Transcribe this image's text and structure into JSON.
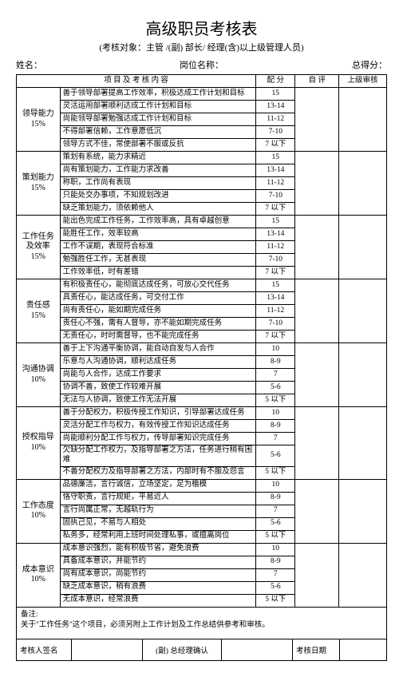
{
  "title": "高级职员考核表",
  "subtitle": "(考核对象：主管 /(副) 部长/ 经理(含)以上级管理人员)",
  "header": {
    "name_label": "姓名：",
    "post_label": "岗位名称：",
    "total_label": "总得分："
  },
  "columns": {
    "item": "项 目 及 考 核 内 容",
    "score": "配 分",
    "self": "自 评",
    "sup": "上级审核"
  },
  "categories": [
    {
      "name": "领导能力",
      "weight": "15%",
      "rows": [
        {
          "desc": "善于领导部署提高工作效率，积极达成工作计划和目标",
          "score": "15"
        },
        {
          "desc": "灵活运用部署顺利达成工作计划和目标",
          "score": "13-14"
        },
        {
          "desc": "尚能领导部署勉强达成工作计划和目标",
          "score": "11-12"
        },
        {
          "desc": "不得部署信赖，工作意愿低沉",
          "score": "7-10"
        },
        {
          "desc": "领导方式不佳，常使部署不服或反抗",
          "score": "7 以下"
        }
      ]
    },
    {
      "name": "策划能力",
      "weight": "15%",
      "rows": [
        {
          "desc": "策划有系统，能力求精近",
          "score": "15"
        },
        {
          "desc": "尚有策划能力，工作能力求改善",
          "score": "13-14"
        },
        {
          "desc": "称职，工作尚有表现",
          "score": "11-12"
        },
        {
          "desc": "只能处交办事项，不知规划改进",
          "score": "7-10"
        },
        {
          "desc": "缺乏策划能力，须依赖他人",
          "score": "7 以下"
        }
      ]
    },
    {
      "name": "工作任务及效率",
      "weight": "15%",
      "rows": [
        {
          "desc": "能出色完成工作任务，工作效率高，具有卓越创意",
          "score": "15"
        },
        {
          "desc": "能胜任工作，效率较高",
          "score": "13-14"
        },
        {
          "desc": "工作不误期，表现符合标准",
          "score": "11-12"
        },
        {
          "desc": "勉强胜任工作，无甚表现",
          "score": "7-10"
        },
        {
          "desc": "工作效率低，时有差错",
          "score": "7 以下"
        }
      ]
    },
    {
      "name": "责任感",
      "weight": "15%",
      "rows": [
        {
          "desc": "有积极责任心，能彻底达成任务，可放心交代任务",
          "score": "15"
        },
        {
          "desc": "具责任心，能达成任务，可交付工作",
          "score": "13-14"
        },
        {
          "desc": "尚有责任心，能如期完成任务",
          "score": "11-12"
        },
        {
          "desc": "责任心不强，需有人督导，亦不能如期完成任务",
          "score": "7-10"
        },
        {
          "desc": "无责任心，时时需督导，也不能完成任务",
          "score": "7 以下"
        }
      ]
    },
    {
      "name": "沟通协调",
      "weight": "10%",
      "rows": [
        {
          "desc": "善于上下沟通平衡协调，能自动自发与人合作",
          "score": "10"
        },
        {
          "desc": "乐意与人沟通协调，顺利达成任务",
          "score": "8-9"
        },
        {
          "desc": "尚能与人合作，达成工作要求",
          "score": "7"
        },
        {
          "desc": "协调不善，致使工作较难开展",
          "score": "5-6"
        },
        {
          "desc": "无法与人协调，致使工作无法开展",
          "score": "5 以下"
        }
      ]
    },
    {
      "name": "授权指导",
      "weight": "10%",
      "rows": [
        {
          "desc": "善于分配权力，积极传授工作知识，引导部署达成任务",
          "score": "10"
        },
        {
          "desc": "灵活分配工作与权力，有效传授工作知识达成任务",
          "score": "8-9"
        },
        {
          "desc": "尚能顺利分配工作与权力，传导部署知识完成任务",
          "score": "7"
        },
        {
          "desc": "欠缺分配工作权力，及指导部署之方法，任务进行稍有困难",
          "score": "5-6"
        },
        {
          "desc": "不善分配权力及指导部署之方法，内部时有不服及怨言",
          "score": "5 以下"
        }
      ]
    },
    {
      "name": "工作态度",
      "weight": "10%",
      "rows": [
        {
          "desc": "品德廉洁，言行诚信，立场坚定，足为楷模",
          "score": "10"
        },
        {
          "desc": "恪守职责，言行规矩，平易近人",
          "score": "8-9"
        },
        {
          "desc": "言行尚属正常，无越轨行为",
          "score": "7"
        },
        {
          "desc": "固执己见，不易与人相处",
          "score": "5-6"
        },
        {
          "desc": "私务多，经常利用上班时间处理私事，或擅离岗位",
          "score": "5 以下"
        }
      ]
    },
    {
      "name": "成本意识",
      "weight": "10%",
      "rows": [
        {
          "desc": "成本意识强烈，能有积极节省，避免浪费",
          "score": "10"
        },
        {
          "desc": "具备成本意识，并能节约",
          "score": "8-9"
        },
        {
          "desc": "尚有成本意识，尚能节约",
          "score": "7"
        },
        {
          "desc": "缺乏成本意识，稍有浪费",
          "score": "5-6"
        },
        {
          "desc": "无成本意识，经常浪费",
          "score": "5 以下"
        }
      ]
    }
  ],
  "notes_label": "备注:",
  "notes_text": "关于\"工作任务\"这个项目，必须另附上工作计划及工作总结供参考和审核。",
  "sign": {
    "signer": "考核人签名",
    "confirm": "(副) 总经理确认",
    "date": "考核日期"
  }
}
